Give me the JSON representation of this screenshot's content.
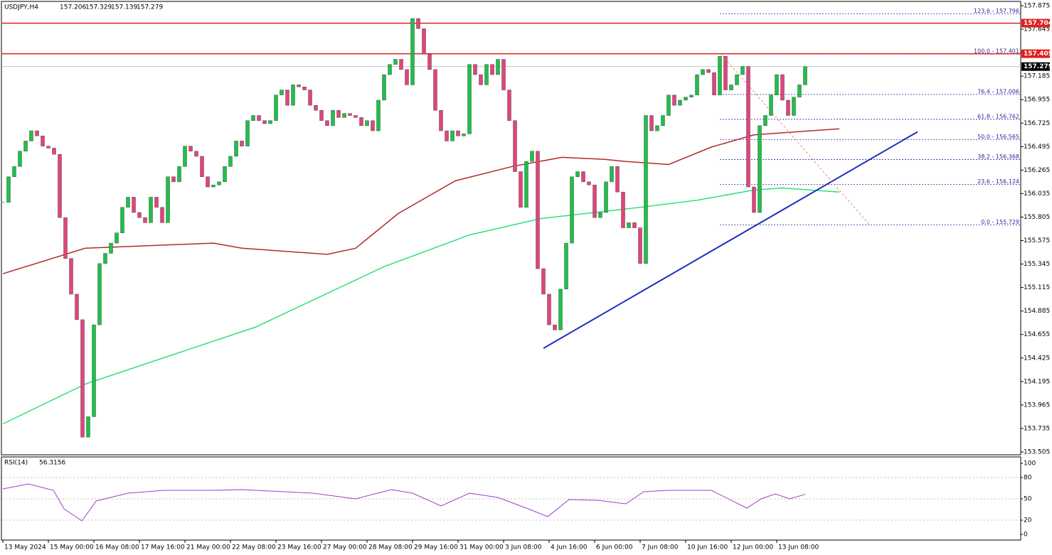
{
  "chart_data": {
    "type": "candlestick",
    "symbol": "USDJPY,H4",
    "quote": [
      157.206,
      157.329,
      157.139,
      157.279
    ],
    "bull_color": "#1fbf4a",
    "bear_color": "#e0457b",
    "ylim": [
      153.477,
      157.91
    ],
    "xlim": [
      -0.125,
      178.875
    ],
    "yticks": [
      157.875,
      157.645,
      157.415,
      157.185,
      156.955,
      156.725,
      156.495,
      156.265,
      156.035,
      155.805,
      155.575,
      155.345,
      155.115,
      154.885,
      154.655,
      154.425,
      154.195,
      153.965,
      153.735,
      153.505
    ],
    "xticks": [
      {
        "value": 0,
        "label": "13 May 2024"
      },
      {
        "value": 8,
        "label": "15 May 00:00"
      },
      {
        "value": 16,
        "label": "16 May 08:00"
      },
      {
        "value": 24,
        "label": "17 May 16:00"
      },
      {
        "value": 32,
        "label": "21 May 00:00"
      },
      {
        "value": 40,
        "label": "22 May 08:00"
      },
      {
        "value": 48,
        "label": "23 May 16:00"
      },
      {
        "value": 56,
        "label": "27 May 00:00"
      },
      {
        "value": 64,
        "label": "28 May 08:00"
      },
      {
        "value": 72,
        "label": "29 May 16:00"
      },
      {
        "value": 80,
        "label": "31 May 00:00"
      },
      {
        "value": 88,
        "label": "3 Jun 08:00"
      },
      {
        "value": 96,
        "label": "4 Jun 16:00"
      },
      {
        "value": 104,
        "label": "6 Jun 00:00"
      },
      {
        "value": 112,
        "label": "7 Jun 08:00"
      },
      {
        "value": 120,
        "label": "10 Jun 16:00"
      },
      {
        "value": 128,
        "label": "12 Jun 00:00"
      },
      {
        "value": 136,
        "label": "13 Jun 08:00"
      }
    ],
    "close": [
      155.95,
      156.2,
      156.3,
      156.45,
      156.55,
      156.65,
      156.6,
      156.5,
      156.48,
      156.42,
      155.8,
      155.4,
      155.05,
      154.8,
      153.65,
      153.85,
      154.75,
      155.35,
      155.45,
      155.55,
      155.65,
      155.9,
      156.0,
      155.85,
      155.8,
      155.75,
      156.0,
      155.9,
      155.75,
      156.2,
      156.15,
      156.3,
      156.5,
      156.45,
      156.4,
      156.2,
      156.1,
      156.12,
      156.15,
      156.3,
      156.4,
      156.55,
      156.5,
      156.75,
      156.8,
      156.75,
      156.72,
      156.75,
      157.0,
      157.05,
      156.9,
      157.1,
      157.08,
      157.05,
      156.9,
      156.85,
      156.75,
      156.7,
      156.85,
      156.78,
      156.82,
      156.8,
      156.78,
      156.7,
      156.75,
      156.65,
      156.95,
      157.2,
      157.3,
      157.35,
      157.25,
      157.1,
      157.75,
      157.65,
      157.4,
      157.25,
      156.85,
      156.65,
      156.55,
      156.65,
      156.6,
      156.62,
      157.3,
      157.2,
      157.1,
      157.3,
      157.2,
      157.35,
      157.05,
      156.75,
      156.25,
      155.9,
      156.35,
      156.45,
      155.3,
      155.05,
      154.75,
      154.7,
      155.1,
      155.55,
      156.2,
      156.25,
      156.15,
      156.12,
      155.8,
      155.85,
      156.15,
      156.3,
      156.05,
      155.7,
      155.75,
      155.7,
      155.35,
      156.8,
      156.65,
      156.7,
      156.8,
      157.0,
      156.9,
      156.95,
      156.98,
      157.0,
      157.2,
      157.25,
      157.22,
      157.0,
      157.38,
      157.05,
      157.1,
      157.2,
      157.28,
      156.1,
      155.85,
      156.7,
      156.8,
      157.0,
      157.2,
      156.95,
      156.8,
      156.98,
      157.1,
      157.279
    ],
    "series": [
      {
        "color": "#b22a2a",
        "x": [
          0,
          14.5,
          37,
          42,
          57,
          62,
          69.5,
          79.5,
          89.5,
          98.25,
          105.75,
          109.5,
          117,
          124.5,
          132,
          137,
          147
        ],
        "values": [
          155.25,
          155.5,
          155.55,
          155.5,
          155.44,
          155.5,
          155.84,
          156.16,
          156.3,
          156.39,
          156.37,
          156.35,
          156.32,
          156.49,
          156.61,
          156.63,
          156.67
        ]
      },
      {
        "color": "#2ee07a",
        "x": [
          0,
          14.5,
          44.5,
          67,
          82,
          94.5,
          112,
          122,
          132,
          137,
          147
        ],
        "values": [
          153.78,
          154.17,
          154.73,
          155.32,
          155.63,
          155.79,
          155.9,
          155.97,
          156.07,
          156.09,
          156.05
        ]
      }
    ],
    "trendline": {
      "color": "#1f2fbf",
      "x": [
        95,
        160.75
      ],
      "values": [
        154.52,
        156.64
      ]
    },
    "fib_diagonal": {
      "color": "#e06a6a",
      "x": [
        126.4,
        152.3
      ],
      "values": [
        157.39,
        155.73
      ]
    },
    "levels": [
      {
        "value": 157.704,
        "color": "#e02020"
      },
      {
        "value": 157.405,
        "color": "#e02020"
      }
    ],
    "current": {
      "value": 157.279
    },
    "fib_start": 126,
    "fib": [
      {
        "value": 157.796,
        "label": "123.6 - 157.796"
      },
      {
        "value": 157.401,
        "label": "100.0 - 157.401"
      },
      {
        "value": 157.006,
        "label": "76.4 - 157.006"
      },
      {
        "value": 156.762,
        "label": "61.8 - 156.762"
      },
      {
        "value": 156.565,
        "label": "50.0 - 156.565"
      },
      {
        "value": 156.368,
        "label": "38.2 - 156.368"
      },
      {
        "value": 156.124,
        "label": "23.6 - 156.124"
      },
      {
        "value": 155.729,
        "label": "0.0 - 155.729"
      }
    ],
    "rsi": {
      "name": "RSI(14)",
      "last": 56.3156,
      "color": "#9b3fc8",
      "ylim": [
        0,
        104
      ],
      "yticks": [
        100,
        80,
        50,
        20,
        0
      ],
      "levels": [
        80,
        50,
        20
      ],
      "x": [
        0,
        4.5,
        8.9,
        10.75,
        13.9,
        16.4,
        22,
        28.25,
        37,
        42,
        49.5,
        54.5,
        62,
        68.25,
        72,
        77,
        82,
        87,
        92,
        95.75,
        99.5,
        104.5,
        109.5,
        112.6,
        117,
        124.5,
        130.75,
        133.25,
        135.75,
        138.25,
        141
      ],
      "values": [
        64,
        71,
        62,
        36,
        19,
        47,
        58,
        62,
        62,
        63,
        60,
        58,
        50,
        63,
        58,
        40,
        58,
        52,
        37,
        25,
        49,
        48,
        43,
        60,
        62,
        62,
        37,
        50,
        57,
        50,
        56.3156
      ]
    }
  }
}
